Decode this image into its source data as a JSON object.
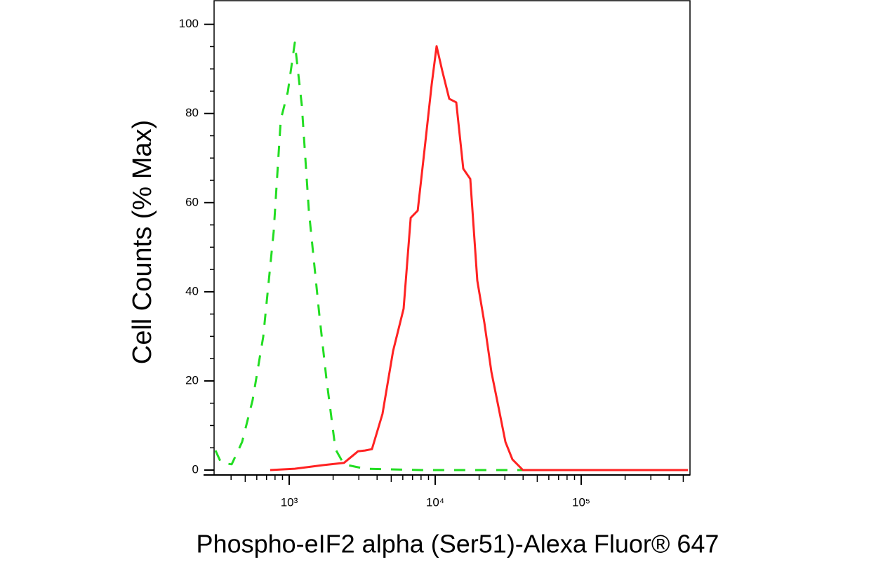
{
  "chart_data": {
    "type": "line",
    "log_x": true,
    "xlabel": "Phospho-eIF2 alpha (Ser51)-Alexa Fluor® 647",
    "ylabel": "Cell Counts (% Max)",
    "xlim": [
      306,
      556000
    ],
    "ylim": [
      -1.1,
      105.3
    ],
    "xticks": [
      {
        "value": 1000,
        "label": "10³"
      },
      {
        "value": 10000,
        "label": "10⁴"
      },
      {
        "value": 100000,
        "label": "10⁵"
      }
    ],
    "yticks": [
      0,
      20,
      40,
      60,
      80,
      100
    ],
    "series": [
      {
        "color": "#22dd22",
        "dash": true,
        "x": [
          313,
          342,
          404,
          476,
          562,
          664,
          783,
          876,
          979,
          1093,
          1221,
          1364,
          1611,
          1800,
          2075,
          2373,
          3305,
          8020,
          24270,
          221800,
          538000
        ],
        "values": [
          4.4,
          1.6,
          1.3,
          6.3,
          15.7,
          29.9,
          53.5,
          78.6,
          84.9,
          95.9,
          81.8,
          58.2,
          34.6,
          20.4,
          4.7,
          1.3,
          0.3,
          0,
          0,
          0,
          0
        ]
      },
      {
        "color": "#ff2222",
        "dash": false,
        "x": [
          741,
          1093,
          1702,
          2373,
          2958,
          3305,
          3690,
          4357,
          5148,
          6080,
          6793,
          7589,
          8476,
          9464,
          10230,
          11170,
          12480,
          13940,
          15570,
          17390,
          19420,
          21720,
          24270,
          27100,
          30270,
          33810,
          39900,
          73280,
          538000
        ],
        "values": [
          0,
          0.3,
          1.1,
          1.6,
          4.2,
          4.4,
          4.7,
          12.6,
          26.7,
          36.2,
          56.6,
          58.2,
          72.3,
          86.5,
          95.1,
          89.6,
          83.3,
          82.5,
          67.6,
          65.3,
          42.5,
          33,
          22,
          14.2,
          6.3,
          2.4,
          0,
          0,
          0
        ]
      }
    ]
  }
}
